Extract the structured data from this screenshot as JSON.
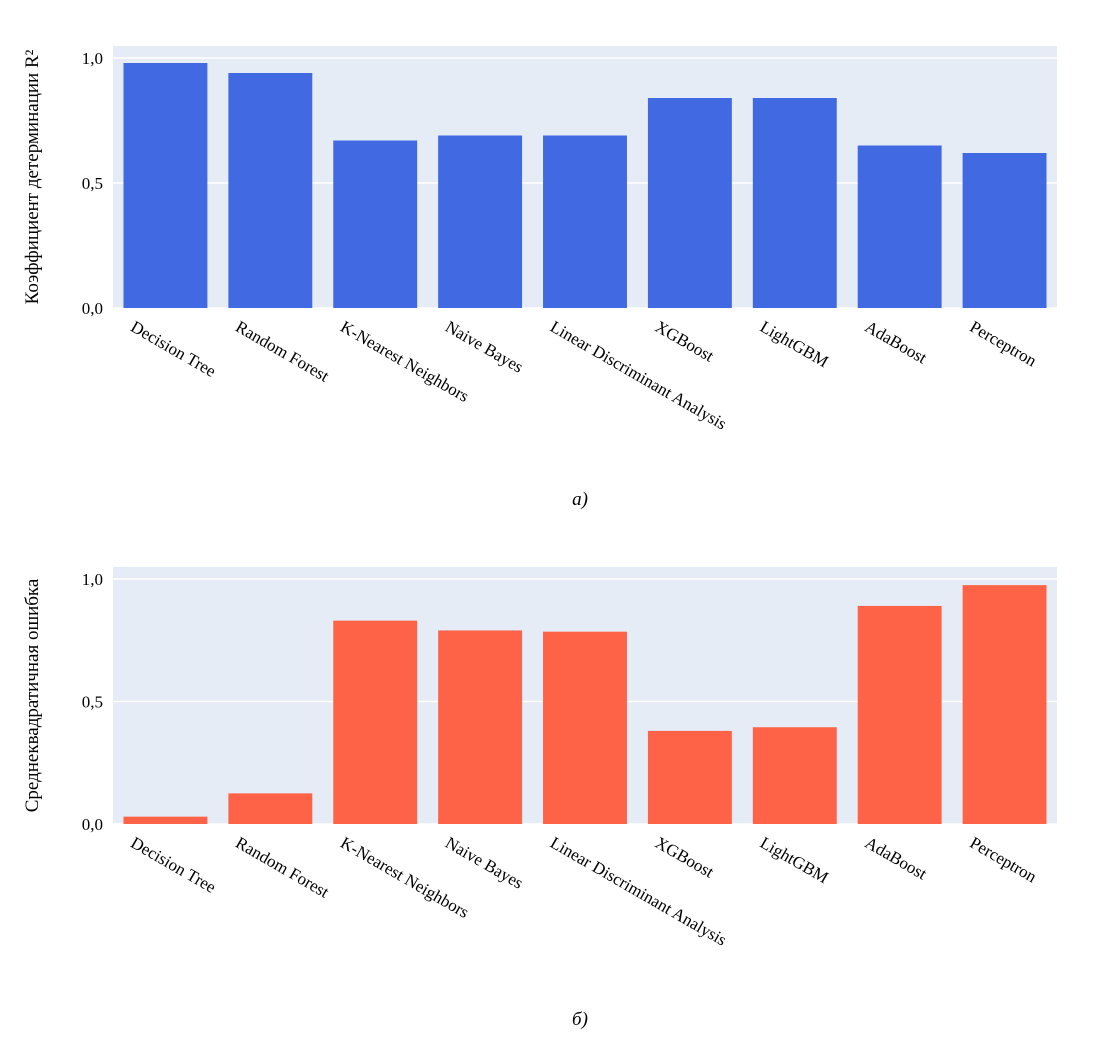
{
  "chart_data": [
    {
      "type": "bar",
      "categories": [
        "Decision Tree",
        "Random Forest",
        "K-Nearest Neighbors",
        "Naive Bayes",
        "Linear Discriminant Analysis",
        "XGBoost",
        "LightGBM",
        "AdaBoost",
        "Perceptron"
      ],
      "values": [
        0.98,
        0.94,
        0.67,
        0.69,
        0.69,
        0.84,
        0.84,
        0.65,
        0.62
      ],
      "ylabel": "Коэффициент детерминации R²",
      "ylim": [
        0,
        1.0
      ],
      "yticks": [
        "0,0",
        "0,5",
        "1,0"
      ],
      "caption": "а)",
      "color": "#4169E1",
      "grid": true
    },
    {
      "type": "bar",
      "categories": [
        "Decision Tree",
        "Random Forest",
        "K-Nearest Neighbors",
        "Naive Bayes",
        "Linear Discriminant Analysis",
        "XGBoost",
        "LightGBM",
        "AdaBoost",
        "Perceptron"
      ],
      "values": [
        0.03,
        0.125,
        0.83,
        0.79,
        0.785,
        0.38,
        0.395,
        0.89,
        0.975
      ],
      "ylabel": "Среднеквадратичная ошибка",
      "ylim": [
        0,
        1.0
      ],
      "yticks": [
        "0,0",
        "0,5",
        "1,0"
      ],
      "caption": "б)",
      "color": "#FF6347",
      "grid": true
    }
  ]
}
